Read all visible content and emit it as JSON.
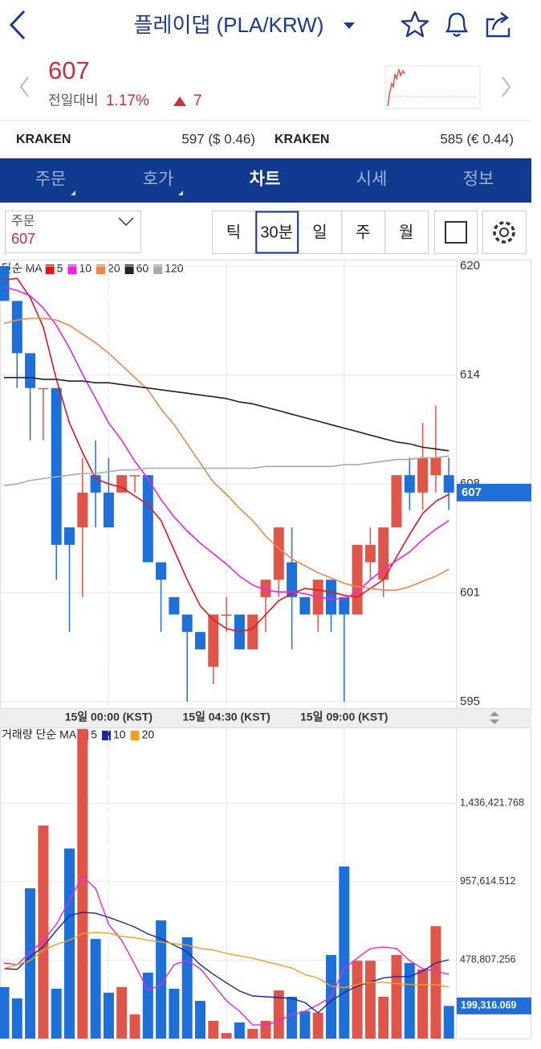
{
  "header": {
    "title": "플레이댑 (PLA/KRW)"
  },
  "quote": {
    "price": "607",
    "change_label": "전일대비",
    "change_percent": "1.17%",
    "change_amount": "7"
  },
  "exchanges": [
    {
      "name": "KRAKEN",
      "price": "597 ($ 0.46)"
    },
    {
      "name": "KRAKEN",
      "price": "585 (€ 0.44)"
    }
  ],
  "tabs": [
    "주문",
    "호가",
    "차트",
    "시세",
    "정보"
  ],
  "controls": {
    "order_label": "주문",
    "order_value": "607",
    "periods": [
      "틱",
      "30분",
      "일",
      "주",
      "월"
    ]
  },
  "chart_data": [
    {
      "type": "candlestick",
      "legend_title": "단순 MA",
      "categories": [
        null,
        null,
        null,
        null,
        null,
        null,
        null,
        null,
        "15일 00:00 (KST)",
        null,
        null,
        null,
        null,
        null,
        null,
        null,
        null,
        "15일 04:30 (KST)",
        null,
        null,
        null,
        null,
        null,
        null,
        null,
        null,
        "15일 09:00 (KST)",
        null,
        null,
        null,
        null,
        null,
        null,
        null,
        null
      ],
      "open": [
        620,
        618,
        615,
        613,
        613,
        605,
        605,
        608,
        607,
        607,
        608,
        608,
        603,
        601,
        600,
        599,
        597,
        600,
        600,
        598,
        601,
        602,
        603,
        601,
        600,
        602,
        601,
        600,
        603,
        602,
        605,
        608,
        607,
        608,
        608
      ],
      "high": [
        620,
        618,
        615,
        613,
        613,
        605,
        609,
        610,
        609,
        608,
        608,
        608,
        603,
        601,
        600,
        599,
        600,
        601,
        600,
        600,
        602,
        605,
        605,
        601,
        602,
        602,
        601,
        604,
        605,
        605,
        608,
        609,
        611,
        612,
        609
      ],
      "low": [
        618,
        613,
        610,
        610,
        602,
        599,
        601,
        605,
        605,
        607,
        607,
        603,
        599,
        600,
        595,
        598,
        596,
        599,
        598,
        598,
        599,
        601,
        598,
        600,
        599,
        599,
        595,
        600,
        602,
        601,
        605,
        606,
        606,
        607,
        606
      ],
      "close": [
        618,
        615,
        613,
        613,
        604,
        604,
        607,
        607,
        605,
        608,
        608,
        603,
        602,
        600,
        599,
        598,
        600,
        600,
        598,
        600,
        602,
        605,
        601,
        600,
        602,
        600,
        600,
        604,
        604,
        605,
        608,
        607,
        609,
        609,
        607
      ],
      "up_color": "#e0554a",
      "down_color": "#1f6fd8",
      "series": [
        {
          "name": "5",
          "color": "#e8141b",
          "values": [
            619.2,
            619.3,
            618.2,
            616.5,
            613.5,
            611.0,
            609.3,
            607.8,
            607.5,
            607.3,
            606.8,
            606.3,
            605.4,
            603.7,
            602.0,
            600.5,
            599.7,
            599.2,
            599.0,
            599.2,
            600.0,
            600.8,
            601.2,
            601.5,
            601.4,
            601.3,
            601.1,
            601.0,
            601.5,
            602.0,
            603.3,
            604.6,
            605.8,
            606.5,
            606.9
          ]
        },
        {
          "name": "10",
          "color": "#ee22e8",
          "values": [
            618.8,
            618.6,
            618.3,
            617.6,
            616.6,
            615.3,
            613.8,
            612.4,
            611.0,
            610.0,
            608.8,
            607.8,
            606.6,
            605.6,
            604.8,
            604.1,
            603.5,
            602.9,
            602.2,
            601.7,
            601.4,
            601.3,
            601.3,
            601.2,
            601.0,
            600.9,
            600.9,
            601.3,
            602.0,
            602.6,
            603.1,
            603.6,
            604.3,
            604.9,
            605.4
          ]
        },
        {
          "name": "20",
          "color": "#f0874a",
          "values": [
            616.7,
            616.9,
            617.0,
            617.0,
            616.9,
            616.6,
            616.1,
            615.6,
            615.0,
            614.3,
            613.6,
            612.9,
            611.8,
            610.9,
            609.8,
            608.7,
            607.6,
            606.9,
            606.1,
            605.4,
            604.5,
            603.8,
            603.2,
            602.8,
            602.4,
            602.1,
            601.8,
            601.6,
            601.5,
            601.4,
            601.4,
            601.6,
            601.9,
            602.2,
            602.6
          ]
        },
        {
          "name": "60",
          "color": "#222222",
          "values": [
            613.6,
            613.6,
            613.6,
            613.5,
            613.5,
            613.4,
            613.4,
            613.3,
            613.3,
            613.2,
            613.1,
            613.0,
            612.9,
            612.8,
            612.7,
            612.6,
            612.5,
            612.4,
            612.2,
            612.1,
            611.9,
            611.7,
            611.5,
            611.3,
            611.1,
            610.9,
            610.7,
            610.5,
            610.3,
            610.1,
            609.9,
            609.8,
            609.6,
            609.5,
            609.4
          ]
        },
        {
          "name": "120",
          "color": "#aaaaaa",
          "values": [
            607.4,
            607.5,
            607.7,
            607.8,
            607.9,
            608.0,
            608.1,
            608.1,
            608.2,
            608.3,
            608.3,
            608.4,
            608.4,
            608.4,
            608.4,
            608.4,
            608.4,
            608.4,
            608.4,
            608.4,
            608.5,
            608.5,
            608.5,
            608.5,
            608.5,
            608.5,
            608.6,
            608.6,
            608.7,
            608.8,
            608.9,
            608.9,
            609.0,
            609.0,
            609.1
          ]
        }
      ],
      "ylim": [
        594.58,
        620.37
      ],
      "yticks": [
        620,
        {
          "value": 613.75,
          "label": "614"
        },
        {
          "value": 607.5,
          "label": "608"
        },
        {
          "value": 601.25,
          "label": "601"
        },
        595
      ],
      "grid": true
    },
    {
      "type": "bar",
      "legend_title": "거래량 단순 MA",
      "values": [
        314000,
        245000,
        917000,
        1300000,
        304000,
        1160000,
        1890000,
        608000,
        280000,
        314000,
        147000,
        402000,
        721000,
        304000,
        618000,
        230000,
        108000,
        34000,
        98000,
        59000,
        108000,
        294000,
        255000,
        167000,
        157000,
        510000,
        1050000,
        475000,
        475000,
        255000,
        510000,
        461000,
        422000,
        686000,
        199316.069
      ],
      "value_labels": [
        null,
        null,
        null,
        null,
        null,
        null,
        null,
        null,
        null,
        null,
        null,
        null,
        null,
        null,
        null,
        null,
        null,
        null,
        null,
        null,
        null,
        null,
        null,
        null,
        null,
        null,
        null,
        null,
        null,
        null,
        null,
        null,
        null,
        null,
        "199,316.069"
      ],
      "series": [
        {
          "name": "5",
          "color": "#ee22e8",
          "values": [
            461000,
            451000,
            525000,
            599000,
            697000,
            844000,
            991000,
            917000,
            697000,
            599000,
            451000,
            294000,
            329000,
            451000,
            476000,
            427000,
            329000,
            231000,
            167000,
            83000,
            83000,
            108000,
            147000,
            167000,
            206000,
            255000,
            427000,
            491000,
            549000,
            559000,
            549000,
            476000,
            427000,
            412000,
            392000
          ]
        },
        {
          "name": "10",
          "color": "#1a2a9c",
          "values": [
            427000,
            422000,
            500000,
            560000,
            660000,
            750000,
            770000,
            765000,
            740000,
            711000,
            680000,
            638000,
            610000,
            570000,
            530000,
            451000,
            392000,
            340000,
            290000,
            260000,
            255000,
            250000,
            245000,
            220000,
            157000,
            230000,
            280000,
            320000,
            345000,
            370000,
            378000,
            378000,
            412000,
            461000,
            481000
          ]
        },
        {
          "name": "20",
          "color": "#f0a020",
          "values": [
            427000,
            451000,
            476000,
            540000,
            575000,
            600000,
            640000,
            648000,
            643000,
            623000,
            615000,
            600000,
            589000,
            580000,
            570000,
            550000,
            540000,
            520000,
            505000,
            490000,
            470000,
            451000,
            430000,
            390000,
            370000,
            320000,
            310000,
            330000,
            343000,
            343000,
            335000,
            330000,
            329000,
            329000,
            314000
          ]
        }
      ],
      "ylim": [
        0,
        1898500
      ],
      "yticks": [
        {
          "value": 478807.256,
          "label": "478,807.256"
        },
        {
          "value": 957614.512,
          "label": "957,614.512"
        },
        {
          "value": 1436421.768,
          "label": "1,436,421.768"
        }
      ],
      "grid": true
    }
  ]
}
